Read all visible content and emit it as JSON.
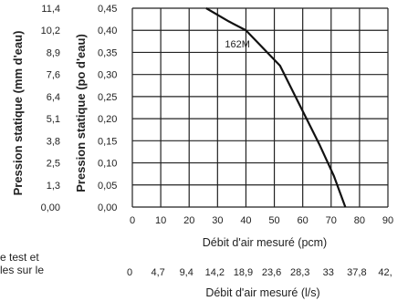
{
  "chart_data": {
    "type": "line",
    "title": "",
    "xlabel_top": "Débit d'air mesuré (pcm)",
    "xlabel_bottom": "Débit d'air mesuré (l/s)",
    "ylabel_left": "Pression statique (mm d'eau)",
    "ylabel_right": "Pression statique (po d'eau)",
    "xlim": [
      0,
      90
    ],
    "ylim": [
      0,
      0.45
    ],
    "x_ticks": [
      "0",
      "10",
      "20",
      "30",
      "40",
      "50",
      "60",
      "70",
      "80",
      "90"
    ],
    "x_ticks_ls": [
      "0",
      "4,7",
      "9,4",
      "14,2",
      "18,9",
      "23,6",
      "28,3",
      "33",
      "37,8",
      "42,"
    ],
    "y_ticks_po": [
      "0,00",
      "0,05",
      "0,10",
      "0,15",
      "0,20",
      "0,25",
      "0,30",
      "0,35",
      "0,40",
      "0,45"
    ],
    "y_ticks_mm": [
      "0,00",
      "1,3",
      "2,5",
      "3,8",
      "5,1",
      "6,4",
      "7,6",
      "8,9",
      "10,2",
      "11,4"
    ],
    "grid": true,
    "series": [
      {
        "name": "162M",
        "x": [
          26,
          34,
          40,
          52,
          59,
          66,
          71,
          75
        ],
        "y": [
          0.45,
          0.42,
          0.4,
          0.32,
          0.23,
          0.14,
          0.07,
          0.0
        ]
      }
    ],
    "annotations": [
      {
        "text": "162M",
        "x": 37,
        "y": 0.37
      }
    ]
  },
  "side_text": {
    "line1": "e test et",
    "line2": "les sur le"
  },
  "colors": {
    "grid": "#222222",
    "line": "#111111",
    "text": "#222222"
  }
}
